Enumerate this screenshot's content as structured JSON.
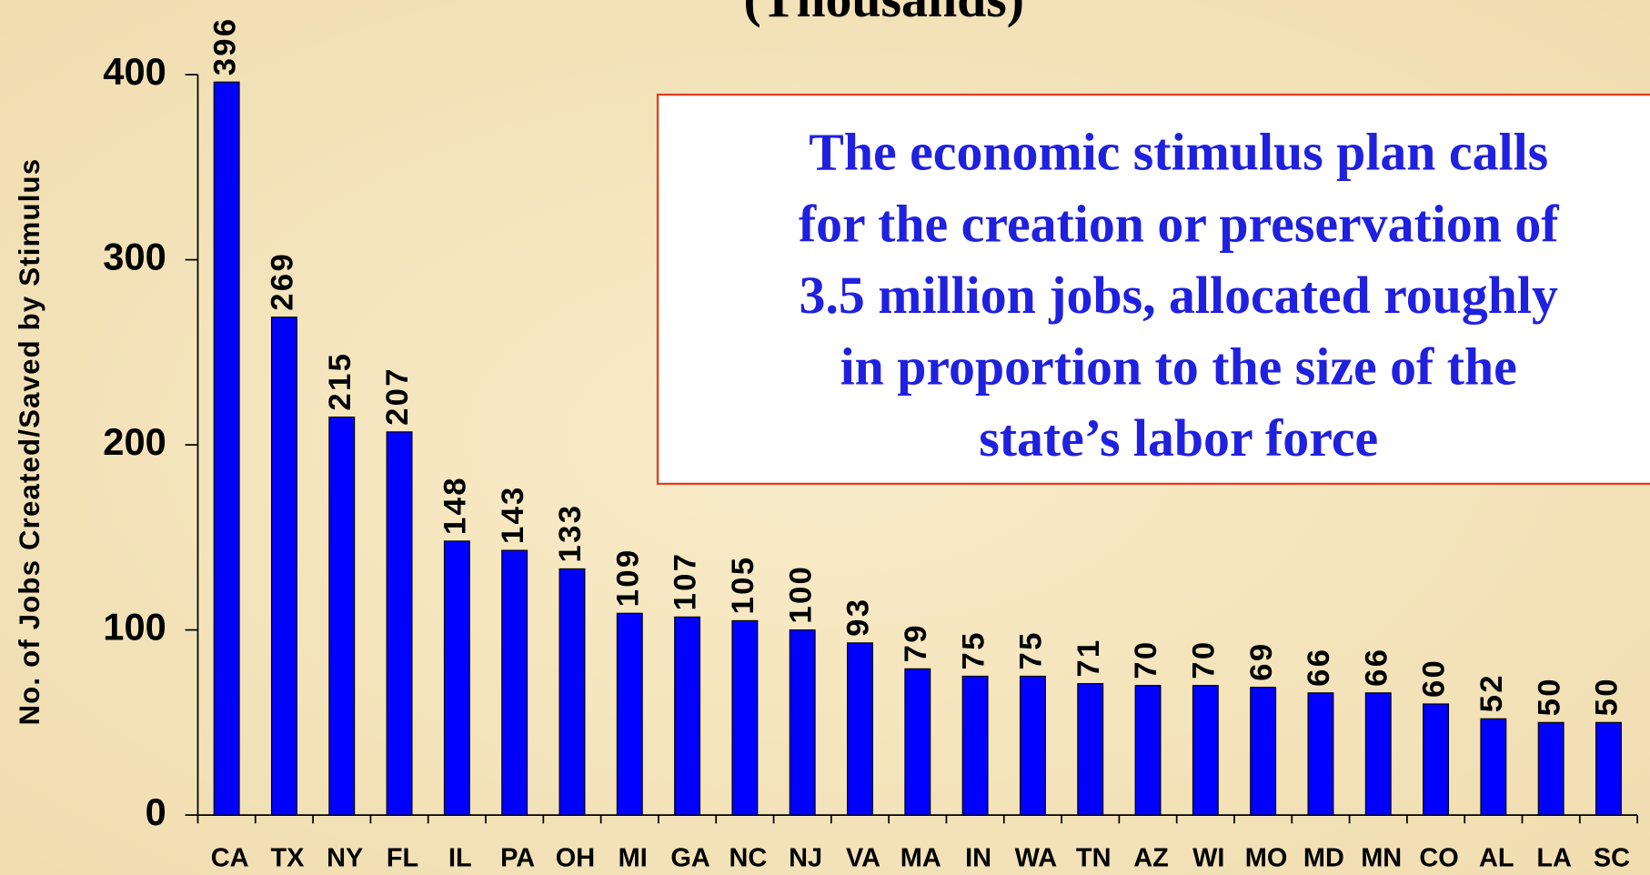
{
  "chart_data": {
    "type": "bar",
    "title": "(Thousands)",
    "y_label": "No. of Jobs Created/Saved by Stimulus",
    "annotation": [
      "The economic stimulus plan calls",
      "for the creation or preservation of",
      "3.5 million jobs, allocated roughly",
      "in proportion to the size of the",
      "state’s labor force"
    ],
    "categories": [
      "CA",
      "TX",
      "NY",
      "FL",
      "IL",
      "PA",
      "OH",
      "MI",
      "GA",
      "NC",
      "NJ",
      "VA",
      "MA",
      "IN",
      "WA",
      "TN",
      "AZ",
      "WI",
      "MO",
      "MD",
      "MN",
      "CO",
      "AL",
      "LA",
      "SC"
    ],
    "values": [
      396,
      269,
      215,
      207,
      148,
      143,
      133,
      109,
      107,
      105,
      100,
      93,
      79,
      75,
      75,
      71,
      70,
      70,
      69,
      66,
      66,
      60,
      52,
      50,
      50
    ],
    "color": "#0000ff",
    "ylim": [
      0,
      400
    ],
    "yticks": [
      0,
      100,
      200,
      300,
      400
    ]
  }
}
